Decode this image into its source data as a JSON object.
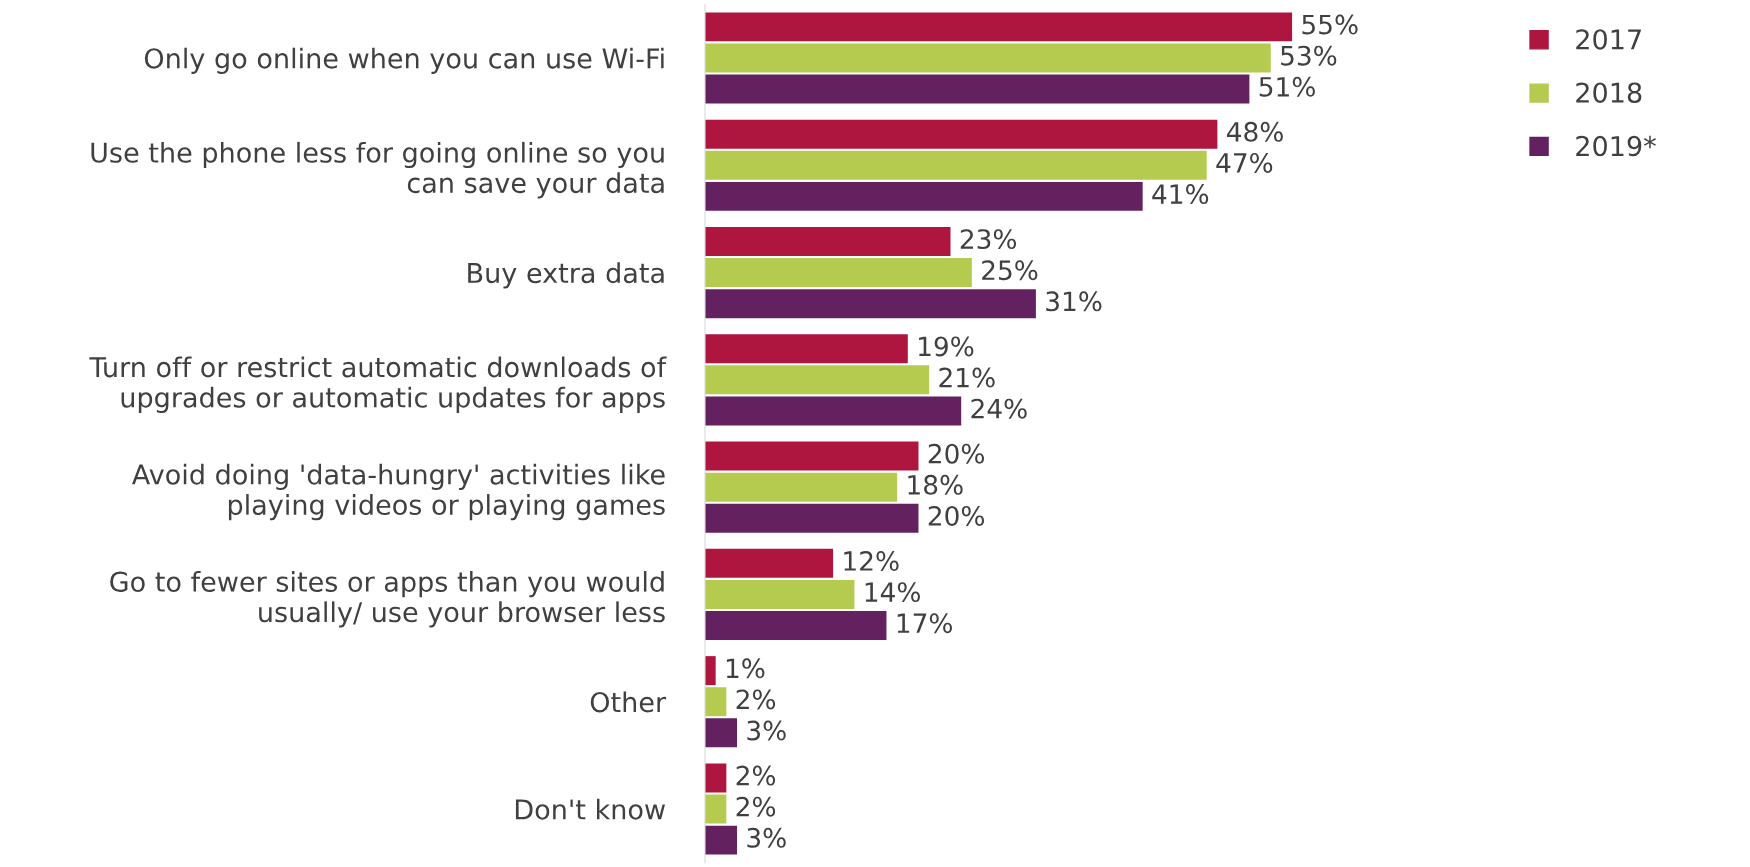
{
  "chart_data": {
    "type": "bar",
    "orientation": "horizontal",
    "categories": [
      "Only go online when you can use Wi-Fi",
      "Use the phone less for going online so you\ncan save your data",
      "Buy extra data",
      "Turn off or restrict automatic downloads of\nupgrades or automatic updates for apps",
      "Avoid doing 'data-hungry' activities like\nplaying videos or playing games",
      "Go to fewer sites or apps than you would\nusually/ use your browser less",
      "Other",
      "Don't know"
    ],
    "series": [
      {
        "name": "2017",
        "color": "#ae1640",
        "values": [
          55,
          48,
          23,
          19,
          20,
          12,
          1,
          2
        ],
        "value_labels": [
          "55%",
          "48%",
          "23%",
          "19%",
          "20%",
          "12%",
          "1%",
          "2%"
        ]
      },
      {
        "name": "2018",
        "color": "#b5cb50",
        "values": [
          53,
          47,
          25,
          21,
          18,
          14,
          2,
          2
        ],
        "value_labels": [
          "53%",
          "47%",
          "25%",
          "21%",
          "18%",
          "14%",
          "2%",
          "2%"
        ]
      },
      {
        "name": "2019*",
        "color": "#632160",
        "values": [
          51,
          41,
          31,
          24,
          20,
          17,
          3,
          3
        ],
        "value_labels": [
          "51%",
          "41%",
          "31%",
          "24%",
          "20%",
          "17%",
          "3%",
          "3%"
        ]
      }
    ],
    "legend": "top right",
    "grid": false,
    "tick_labels": "y"
  }
}
